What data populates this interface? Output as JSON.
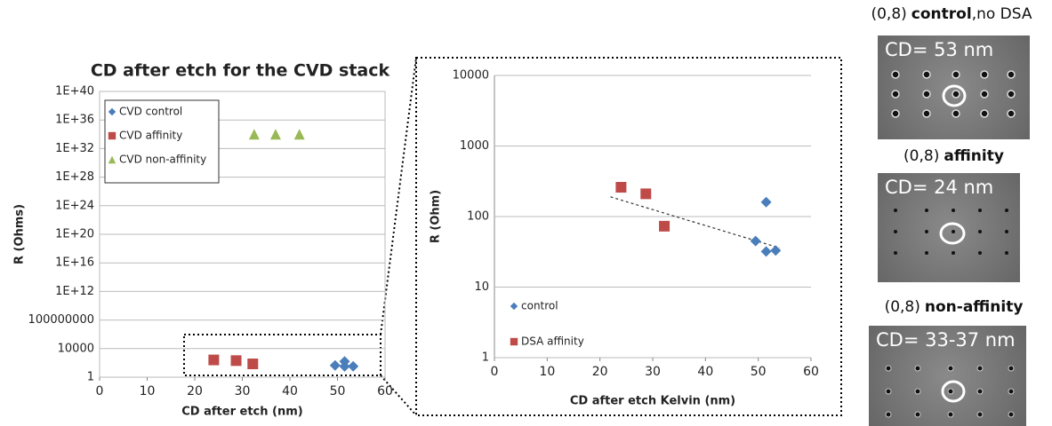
{
  "chart_data": [
    {
      "type": "scatter",
      "title": "CD after etch for the CVD stack",
      "x_label": "CD after etch (nm)",
      "y_label": "R (Ohms)",
      "log_scale": true,
      "grid": true,
      "legend": "upper left",
      "legend_frame": true,
      "xlim": [
        0,
        60
      ],
      "xticks": [
        0,
        10,
        20,
        30,
        40,
        50,
        60
      ],
      "ylim": [
        1,
        1e+40
      ],
      "yticks": [
        1,
        10000,
        100000000,
        {
          "value": 1000000000000.0,
          "label": "1E+12"
        },
        {
          "value": 1e+16,
          "label": "1E+16"
        },
        {
          "value": 1e+20,
          "label": "1E+20"
        },
        {
          "value": 1e+24,
          "label": "1E+24"
        },
        {
          "value": 1e+28,
          "label": "1E+28"
        },
        {
          "value": 1e+32,
          "label": "1E+32"
        },
        {
          "value": 1e+36,
          "label": "1E+36"
        },
        {
          "value": 1e+40,
          "label": "1E+40"
        }
      ],
      "series": [
        {
          "name": "CVD control",
          "color": "#4a7ebb",
          "marker": "diamond",
          "x": [
            49.5,
            51.5,
            51.5,
            53.3
          ],
          "values": [
            45,
            160,
            32,
            33
          ]
        },
        {
          "name": "CVD affinity",
          "color": "#be4b48",
          "marker": "square",
          "x": [
            24,
            28.7,
            32.2
          ],
          "values": [
            260,
            210,
            73
          ]
        },
        {
          "name": "CVD non-affinity",
          "color": "#98b954",
          "marker": "triangle",
          "x": [
            32.5,
            37,
            42
          ],
          "values": [
            1e+34,
            1e+34,
            1e+34
          ]
        }
      ]
    },
    {
      "type": "scatter",
      "x_label": "CD after etch Kelvin (nm)",
      "y_label": "R (Ohm)",
      "log_scale": true,
      "grid": true,
      "legend": "lower left",
      "legend_frame": false,
      "xlim": [
        0,
        60
      ],
      "xticks": [
        0,
        10,
        20,
        30,
        40,
        50,
        60
      ],
      "ylim": [
        1,
        10000
      ],
      "yticks": [
        1,
        10,
        100,
        1000,
        10000
      ],
      "series": [
        {
          "name": "control",
          "color": "#4a7ebb",
          "marker": "diamond",
          "x": [
            49.5,
            51.5,
            51.5,
            53.3
          ],
          "values": [
            45,
            160,
            32,
            33
          ]
        },
        {
          "name": "DSA affinity",
          "color": "#be4b48",
          "marker": "square",
          "x": [
            24,
            28.7,
            32.2
          ],
          "values": [
            260,
            210,
            73
          ]
        }
      ],
      "trendline": {
        "x": [
          22,
          54
        ],
        "values": [
          190,
          36
        ]
      }
    }
  ],
  "panels": [
    {
      "prefix": "(0,8)",
      "bold": "control",
      "suffix": ",no DSA",
      "cd": "CD= 53 nm"
    },
    {
      "prefix": "(0,8)",
      "bold": "affinity",
      "cd": "CD= 24 nm"
    },
    {
      "prefix": "(0,8)",
      "bold": "non-affinity",
      "cd": "CD= 33-37 nm"
    }
  ]
}
